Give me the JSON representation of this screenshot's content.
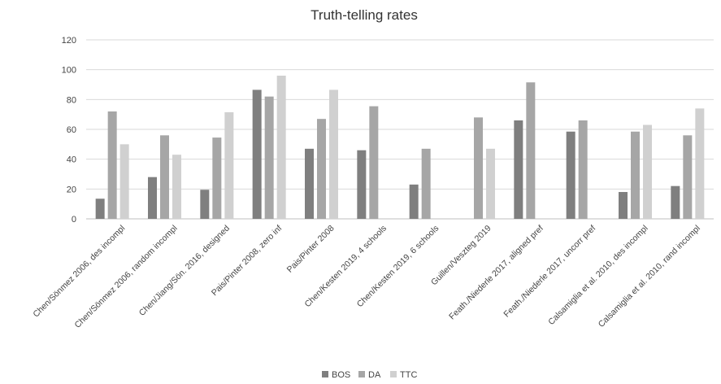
{
  "chart_data": {
    "type": "bar",
    "title": "Truth-telling rates",
    "xlabel": "",
    "ylabel": "",
    "ylim": [
      0,
      120
    ],
    "yticks": [
      0,
      20,
      40,
      60,
      80,
      100,
      120
    ],
    "grid": true,
    "legend": "bottom",
    "categories": [
      "Chen/Sönmez 2006, des incompl",
      "Chen/Sönmez 2006, random incompl",
      "Chen/Jiang/Sön. 2016, designed",
      "Pais/Pinter 2008, zero inf",
      "Pais/Pinter 2008",
      "Chen/Kesten 2019, 4 schools",
      "Chen/Kesten 2019, 6 schools",
      "Guillen/Veszteg 2019",
      "Feath./Niederle 2017, aligned pref",
      "Feath./Niederle 2017, uncorr pref",
      "Calsamiglia et al. 2010, des incompl",
      "Calsamiglia et al. 2010, rand incompl"
    ],
    "series": [
      {
        "name": "BOS",
        "color": "#7f7f7f",
        "values": [
          13.5,
          28,
          19.5,
          86.5,
          47,
          46,
          23,
          null,
          66,
          58.5,
          18,
          22
        ]
      },
      {
        "name": "DA",
        "color": "#a6a6a6",
        "values": [
          72,
          56,
          54.5,
          82,
          67,
          75.5,
          47,
          68,
          91.5,
          66,
          58.5,
          56
        ]
      },
      {
        "name": "TTC",
        "color": "#d0d0d0",
        "values": [
          50,
          43,
          71.5,
          96,
          86.5,
          null,
          null,
          47,
          null,
          null,
          63,
          74
        ]
      }
    ]
  }
}
